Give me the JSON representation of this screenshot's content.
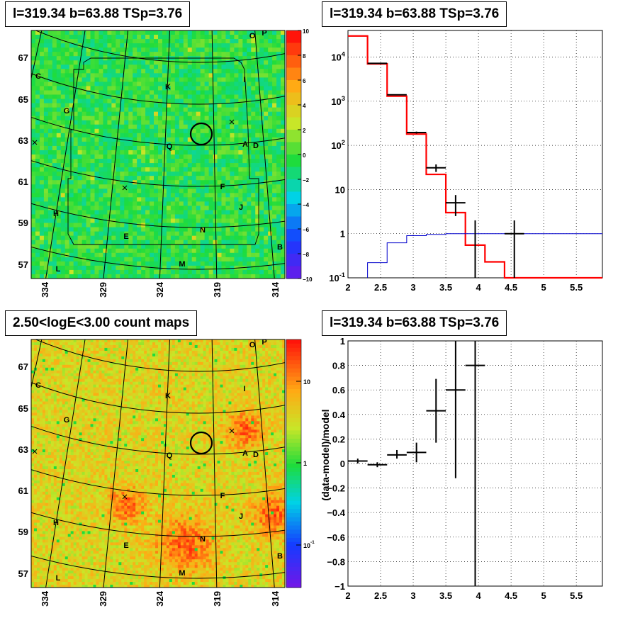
{
  "titles": {
    "top_left": "l=319.34 b=63.88 TSp=3.76",
    "top_right": "l=319.34 b=63.88 TSp=3.76",
    "bottom_left": "2.50<logE<3.00 count maps",
    "bottom_right": "l=319.34 b=63.88 TSp=3.76"
  },
  "colors": {
    "data": "#000000",
    "model": "#ff0000",
    "background_model": "#0000cc",
    "grid": "#000000"
  },
  "chart_data": [
    {
      "type": "heatmap",
      "name": "residual-map",
      "title": "l=319.34 b=63.88 TSp=3.76",
      "x_ticks": [
        "334",
        "329",
        "324",
        "319",
        "314"
      ],
      "y_ticks": [
        "67",
        "65",
        "63",
        "61",
        "59",
        "57"
      ],
      "colorbar": {
        "min": -10,
        "max": 10,
        "ticks": [
          "10",
          "8",
          "6",
          "4",
          "2",
          "0",
          "−2",
          "−4",
          "−6",
          "−8",
          "−10"
        ]
      },
      "source_labels": [
        "O",
        "P",
        "C",
        "K",
        "I",
        "G",
        "Q",
        "A",
        "D",
        "F",
        "J",
        "H",
        "N",
        "E",
        "B",
        "M",
        "L"
      ]
    },
    {
      "type": "line",
      "name": "spectrum",
      "title": "l=319.34 b=63.88 TSp=3.76",
      "xlim": [
        2,
        5.9
      ],
      "ylim": [
        0.1,
        40000
      ],
      "y_scale": "log",
      "x_ticks": [
        "2",
        "2.5",
        "3",
        "3.5",
        "4",
        "4.5",
        "5",
        "5.5"
      ],
      "y_ticks": [
        "10^-1",
        "1",
        "10",
        "10^2",
        "10^3",
        "10^4"
      ],
      "model_bins": [
        {
          "x0": 2.0,
          "x1": 2.3,
          "y": 30000
        },
        {
          "x0": 2.3,
          "x1": 2.6,
          "y": 7000
        },
        {
          "x0": 2.6,
          "x1": 2.9,
          "y": 1300
        },
        {
          "x0": 2.9,
          "x1": 3.2,
          "y": 180
        },
        {
          "x0": 3.2,
          "x1": 3.5,
          "y": 22
        },
        {
          "x0": 3.5,
          "x1": 3.8,
          "y": 3
        },
        {
          "x0": 3.8,
          "x1": 4.1,
          "y": 0.55
        },
        {
          "x0": 4.1,
          "x1": 4.4,
          "y": 0.23
        },
        {
          "x0": 4.4,
          "x1": 5.9,
          "y": 0.1
        }
      ],
      "background_bins": [
        {
          "x0": 2.3,
          "x1": 2.6,
          "y": 0.22
        },
        {
          "x0": 2.6,
          "x1": 2.9,
          "y": 0.62
        },
        {
          "x0": 2.9,
          "x1": 3.2,
          "y": 0.9
        },
        {
          "x0": 3.2,
          "x1": 3.5,
          "y": 0.96
        },
        {
          "x0": 3.5,
          "x1": 5.9,
          "y": 1.0
        }
      ],
      "data_points": [
        {
          "x": 2.45,
          "y": 7200,
          "xerr": 0.15,
          "ylo": 7100,
          "yhi": 7300
        },
        {
          "x": 2.75,
          "y": 1400,
          "xerr": 0.15,
          "ylo": 1370,
          "yhi": 1430
        },
        {
          "x": 3.05,
          "y": 195,
          "xerr": 0.15,
          "ylo": 185,
          "yhi": 205
        },
        {
          "x": 3.35,
          "y": 31,
          "xerr": 0.15,
          "ylo": 25,
          "yhi": 37
        },
        {
          "x": 3.65,
          "y": 5,
          "xerr": 0.15,
          "ylo": 2.5,
          "yhi": 7.5
        },
        {
          "x": 3.95,
          "y": 1,
          "xerr": 0,
          "ylo": 0.1,
          "yhi": 2
        },
        {
          "x": 4.55,
          "y": 1,
          "xerr": 0.15,
          "ylo": 0.1,
          "yhi": 2
        }
      ]
    },
    {
      "type": "heatmap",
      "name": "count-map",
      "title": "2.50<logE<3.00 count maps",
      "x_ticks": [
        "334",
        "329",
        "324",
        "319",
        "314"
      ],
      "y_ticks": [
        "67",
        "65",
        "63",
        "61",
        "59",
        "57"
      ],
      "colorbar": {
        "scale": "log",
        "ticks": [
          "10",
          "1",
          "10^-1"
        ]
      },
      "source_labels": [
        "O",
        "P",
        "C",
        "K",
        "I",
        "G",
        "Q",
        "A",
        "D",
        "F",
        "J",
        "H",
        "N",
        "E",
        "B",
        "M",
        "L"
      ]
    },
    {
      "type": "scatter",
      "name": "residuals",
      "title": "l=319.34 b=63.88 TSp=3.76",
      "ylabel": "(data-model)/model",
      "xlim": [
        2,
        5.9
      ],
      "ylim": [
        -1,
        1
      ],
      "x_ticks": [
        "2",
        "2.5",
        "3",
        "3.5",
        "4",
        "4.5",
        "5",
        "5.5"
      ],
      "y_ticks": [
        "1",
        "0.8",
        "0.6",
        "0.4",
        "0.2",
        "0",
        "−0.2",
        "−0.4",
        "−0.6",
        "−0.8",
        "−1"
      ],
      "points": [
        {
          "x": 2.15,
          "y": 0.02,
          "xerr": 0.15,
          "ylo": 0.0,
          "yhi": 0.04
        },
        {
          "x": 2.45,
          "y": -0.01,
          "xerr": 0.15,
          "ylo": -0.03,
          "yhi": 0.01
        },
        {
          "x": 2.75,
          "y": 0.07,
          "xerr": 0.15,
          "ylo": 0.04,
          "yhi": 0.11
        },
        {
          "x": 3.05,
          "y": 0.09,
          "xerr": 0.15,
          "ylo": 0.01,
          "yhi": 0.17
        },
        {
          "x": 3.35,
          "y": 0.43,
          "xerr": 0.15,
          "ylo": 0.17,
          "yhi": 0.69
        },
        {
          "x": 3.65,
          "y": 0.6,
          "xerr": 0.15,
          "ylo": -0.12,
          "yhi": 1.0
        },
        {
          "x": 3.95,
          "y": 0.8,
          "xerr": 0.15,
          "ylo": -1.0,
          "yhi": 1.0
        }
      ]
    }
  ]
}
